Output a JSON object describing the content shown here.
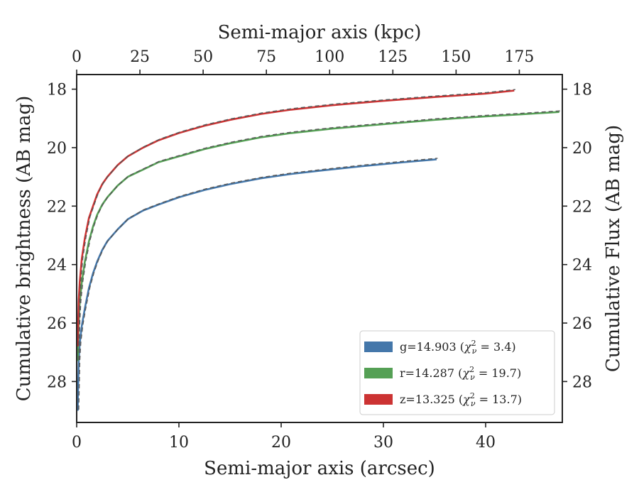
{
  "chart_data": {
    "type": "line",
    "xlabel": "Semi-major axis (arcsec)",
    "ylabel": "Cumulative brightness (AB mag)",
    "top_xlabel": "Semi-major axis (kpc)",
    "right_ylabel": "Cumulative Flux (AB mag)",
    "xlim": [
      0,
      47.5
    ],
    "ylim": [
      29.4,
      17.5
    ],
    "y_inverted": true,
    "top_xlim": [
      0,
      192
    ],
    "x_ticks": [
      "0",
      "10",
      "20",
      "30",
      "40"
    ],
    "y_ticks": [
      "18",
      "20",
      "22",
      "24",
      "26",
      "28"
    ],
    "top_x_ticks": [
      "0",
      "25",
      "50",
      "75",
      "100",
      "125",
      "150",
      "175"
    ],
    "legend_position": "lower right",
    "grid": false,
    "series": [
      {
        "name": "g=14.903 (χ²ν = 3.4)",
        "label_main": "g=14.903 (",
        "label_chi": "χ",
        "label_sup": "2",
        "label_sub": "ν",
        "label_rest": " = 3.4)",
        "color": "#4477aa",
        "x": [
          0.1,
          0.2,
          0.3,
          0.5,
          0.8,
          1.2,
          1.6,
          2.0,
          2.5,
          3.0,
          4.0,
          5.0,
          6.5,
          8.0,
          10.0,
          12.5,
          15.0,
          18.0,
          21.0,
          24.0,
          28.0,
          32.0,
          35.2
        ],
        "y": [
          29.0,
          27.3,
          26.7,
          26.1,
          25.5,
          24.8,
          24.3,
          23.9,
          23.5,
          23.2,
          22.8,
          22.45,
          22.15,
          21.95,
          21.7,
          21.45,
          21.25,
          21.05,
          20.9,
          20.78,
          20.63,
          20.5,
          20.4
        ]
      },
      {
        "name": "r=14.287 (χ²ν = 19.7)",
        "label_main": "r=14.287 (",
        "label_chi": "χ",
        "label_sup": "2",
        "label_sub": "ν",
        "label_rest": " = 19.7)",
        "color": "#55a055",
        "x": [
          0.1,
          0.2,
          0.3,
          0.5,
          0.8,
          1.2,
          1.6,
          2.0,
          2.5,
          3.0,
          4.0,
          5.0,
          6.5,
          8.0,
          10.0,
          12.5,
          15.0,
          18.0,
          21.0,
          25.0,
          30.0,
          35.0,
          40.0,
          44.0,
          47.2
        ],
        "y": [
          27.3,
          26.0,
          25.3,
          24.6,
          23.9,
          23.2,
          22.7,
          22.3,
          21.95,
          21.7,
          21.3,
          21.0,
          20.75,
          20.5,
          20.3,
          20.05,
          19.85,
          19.65,
          19.5,
          19.35,
          19.2,
          19.05,
          18.93,
          18.85,
          18.78
        ]
      },
      {
        "name": "z=13.325 (χ²ν = 13.7)",
        "label_main": "z=13.325 (",
        "label_chi": "χ",
        "label_sup": "2",
        "label_sub": "ν",
        "label_rest": " = 13.7)",
        "color": "#cc3333",
        "x": [
          0.1,
          0.2,
          0.3,
          0.5,
          0.8,
          1.2,
          1.6,
          2.0,
          2.5,
          3.0,
          4.0,
          5.0,
          6.5,
          8.0,
          10.0,
          12.5,
          15.0,
          18.0,
          21.0,
          25.0,
          30.0,
          35.0,
          40.0,
          42.8
        ],
        "y": [
          26.8,
          25.2,
          24.6,
          23.8,
          23.1,
          22.4,
          22.0,
          21.6,
          21.25,
          21.0,
          20.6,
          20.3,
          20.0,
          19.75,
          19.5,
          19.25,
          19.05,
          18.85,
          18.7,
          18.55,
          18.4,
          18.27,
          18.15,
          18.05
        ]
      }
    ]
  }
}
